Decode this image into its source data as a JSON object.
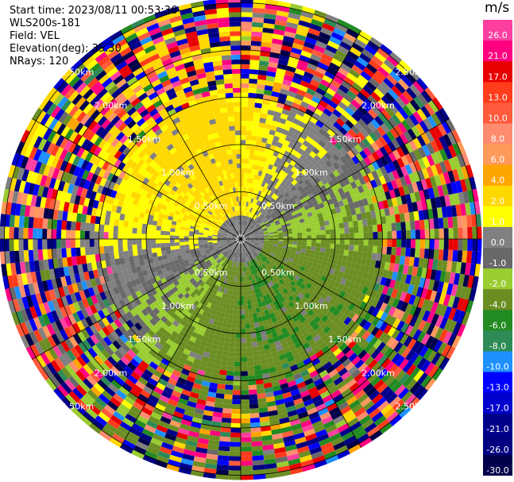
{
  "header": {
    "start_time": "Start time: 2023/08/11 00:53:36",
    "instrument": "WLS200s-181",
    "field": "Field: VEL",
    "elevation": "Elevation(deg): 35.30",
    "nrays": "NRays: 120"
  },
  "colorbar": {
    "unit": "m/s",
    "bins": [
      {
        "label": "26.0",
        "color": "#ff3fa0"
      },
      {
        "label": "21.0",
        "color": "#ff0080"
      },
      {
        "label": "17.0",
        "color": "#e80000"
      },
      {
        "label": "13.0",
        "color": "#ff3c1c"
      },
      {
        "label": "10.0",
        "color": "#ff5a3c"
      },
      {
        "label": "8.0",
        "color": "#ff8c6e"
      },
      {
        "label": "6.0",
        "color": "#ff9a5a"
      },
      {
        "label": "4.0",
        "color": "#ffa500"
      },
      {
        "label": "2.0",
        "color": "#ffd800"
      },
      {
        "label": "1.0",
        "color": "#ffff00"
      },
      {
        "label": "0.0",
        "color": "#808080"
      },
      {
        "label": "-1.0",
        "color": "#696969"
      },
      {
        "label": "-2.0",
        "color": "#9acd32"
      },
      {
        "label": "-4.0",
        "color": "#6b8e23"
      },
      {
        "label": "-6.0",
        "color": "#228b22"
      },
      {
        "label": "-8.0",
        "color": "#2e8b57"
      },
      {
        "label": "-10.0",
        "color": "#1e90ff"
      },
      {
        "label": "-13.0",
        "color": "#0000ff"
      },
      {
        "label": "-17.0",
        "color": "#0000cd"
      },
      {
        "label": "-21.0",
        "color": "#00008b"
      },
      {
        "label": "-26.0",
        "color": "#000080"
      },
      {
        "label": "-30.0",
        "color": "#00004a"
      }
    ]
  },
  "chart_data": {
    "type": "heatmap",
    "title": "",
    "field": "VEL",
    "units": "m/s",
    "projection": "polar PPI",
    "nrays": 120,
    "elevation_deg": 35.3,
    "range_rings": [
      {
        "label": "0.50km"
      },
      {
        "label": "1.00km"
      },
      {
        "label": "1.50km"
      },
      {
        "label": "2.00km"
      },
      {
        "label": "2.50km"
      }
    ],
    "ring_km": [
      0.5,
      1.0,
      1.5,
      2.0,
      2.5
    ],
    "max_range_km": 2.55,
    "spoke_azimuths_deg": [
      0,
      30,
      60,
      90,
      120,
      150,
      180,
      210,
      240,
      270,
      300,
      330
    ],
    "ring_label_azimuths_deg": [
      45,
      135,
      225,
      315
    ],
    "colorbar_levels": [
      26.0,
      21.0,
      17.0,
      13.0,
      10.0,
      8.0,
      6.0,
      4.0,
      2.0,
      1.0,
      0.0,
      -1.0,
      -2.0,
      -4.0,
      -6.0,
      -8.0,
      -10.0,
      -13.0,
      -17.0,
      -21.0,
      -26.0,
      -30.0
    ],
    "pattern": "near range (<1.5km): positive 1-4 m/s toward north-northwest, 0 to -1 m/s toward east, -2 to -6 m/s toward south-southeast; beyond 1.5km: noisy values spanning full scale",
    "grid": true
  }
}
